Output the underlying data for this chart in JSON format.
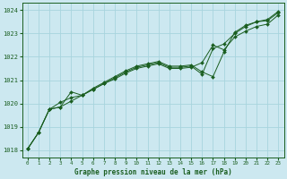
{
  "title": "Graphe pression niveau de la mer (hPa)",
  "bg_color": "#cce8f0",
  "grid_color": "#a8d4de",
  "line_color": "#1a5e20",
  "marker_color": "#1a5e20",
  "xlim": [
    -0.5,
    23.5
  ],
  "ylim": [
    1017.7,
    1024.3
  ],
  "yticks": [
    1018,
    1019,
    1020,
    1021,
    1022,
    1023,
    1024
  ],
  "xticks": [
    0,
    1,
    2,
    3,
    4,
    5,
    6,
    7,
    8,
    9,
    10,
    11,
    12,
    13,
    14,
    15,
    16,
    17,
    18,
    19,
    20,
    21,
    22,
    23
  ],
  "series1_x": [
    0,
    1,
    2,
    3,
    4,
    5,
    6,
    7,
    8,
    9,
    10,
    11,
    12,
    13,
    14,
    15,
    16,
    17,
    18,
    19,
    20,
    21,
    22,
    23
  ],
  "series1_y": [
    1018.05,
    1018.75,
    1019.75,
    1019.85,
    1020.5,
    1020.35,
    1020.6,
    1020.85,
    1021.1,
    1021.35,
    1021.55,
    1021.65,
    1021.75,
    1021.55,
    1021.55,
    1021.6,
    1021.25,
    1022.35,
    1022.55,
    1023.0,
    1023.3,
    1023.5,
    1023.55,
    1023.9
  ],
  "series2_x": [
    0,
    1,
    2,
    3,
    4,
    5,
    6,
    7,
    8,
    9,
    10,
    11,
    12,
    13,
    14,
    15,
    16,
    17,
    18,
    19,
    20,
    21,
    22,
    23
  ],
  "series2_y": [
    1018.05,
    1018.75,
    1019.75,
    1020.05,
    1020.25,
    1020.35,
    1020.65,
    1020.9,
    1021.15,
    1021.4,
    1021.6,
    1021.7,
    1021.8,
    1021.6,
    1021.6,
    1021.65,
    1021.35,
    1021.15,
    1022.2,
    1023.05,
    1023.35,
    1023.5,
    1023.6,
    1023.95
  ],
  "series3_x": [
    0,
    1,
    2,
    3,
    4,
    5,
    6,
    7,
    8,
    9,
    10,
    11,
    12,
    13,
    14,
    15,
    16,
    17,
    18,
    19,
    20,
    21,
    22,
    23
  ],
  "series3_y": [
    1018.05,
    1018.75,
    1019.75,
    1019.85,
    1020.1,
    1020.35,
    1020.6,
    1020.85,
    1021.05,
    1021.3,
    1021.5,
    1021.6,
    1021.7,
    1021.5,
    1021.5,
    1021.55,
    1021.75,
    1022.5,
    1022.3,
    1022.85,
    1023.1,
    1023.3,
    1023.4,
    1023.8
  ]
}
